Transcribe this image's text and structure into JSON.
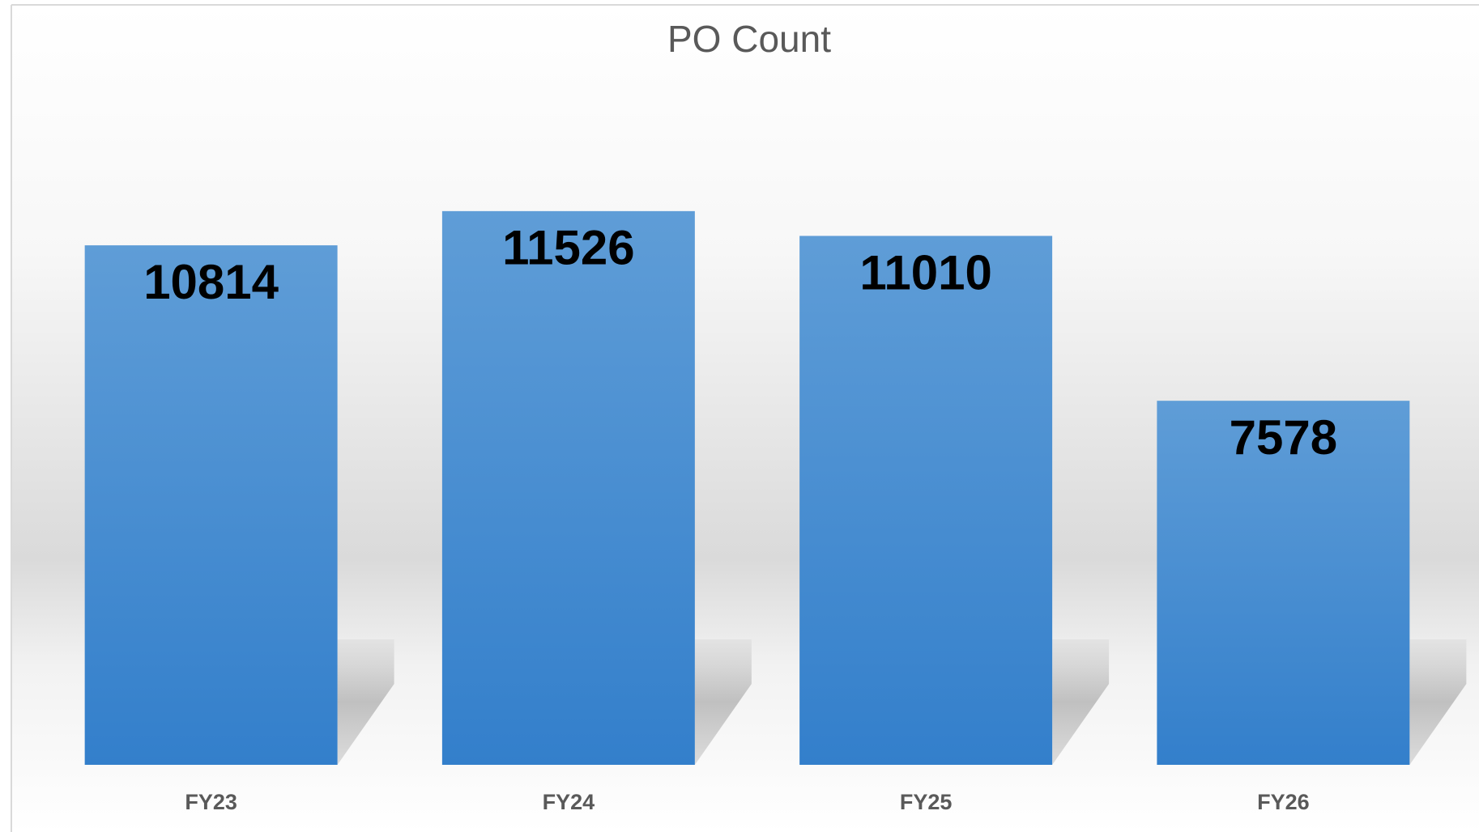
{
  "chart_data": {
    "type": "bar",
    "title": "PO Count",
    "categories": [
      "FY23",
      "FY24",
      "FY25",
      "FY26"
    ],
    "values": [
      10814,
      11526,
      11010,
      7578
    ],
    "color": "#5b9bd5",
    "ylim": [
      0,
      14000
    ]
  }
}
